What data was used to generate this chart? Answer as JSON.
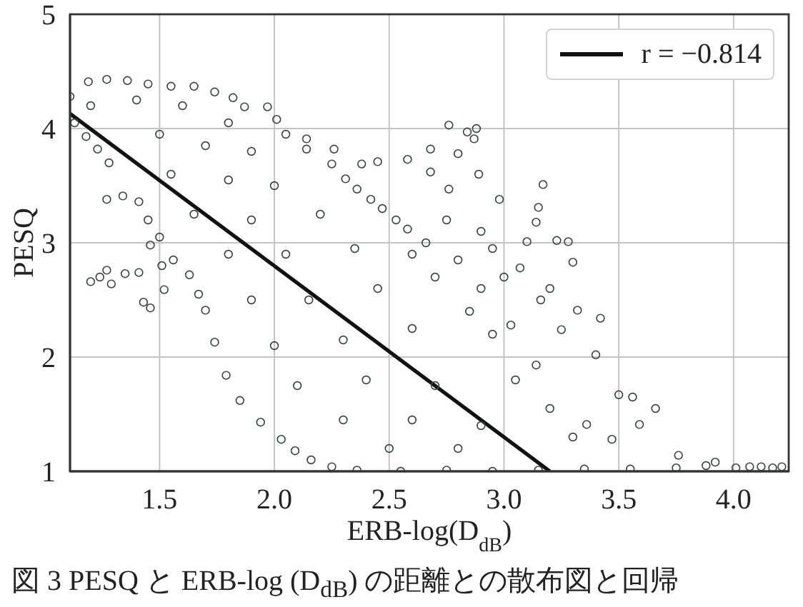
{
  "chart_data": {
    "type": "scatter",
    "xlabel": "ERB-log(D$_{dB}$)",
    "ylabel": "PESQ",
    "annotations": [
      "図 3 PESQ と ERB-log (D$_{dB}$) の距離との散布図と回帰"
    ],
    "xlim": [
      1.11,
      4.24
    ],
    "xticks": [
      1.5,
      {
        "value": 2,
        "label": "2.0"
      },
      2.5,
      {
        "value": 3,
        "label": "3.0"
      },
      3.5,
      {
        "value": 4,
        "label": "4.0"
      }
    ],
    "ylim": [
      1,
      5
    ],
    "yticks": [
      1,
      2,
      3,
      4,
      5
    ],
    "grid": true,
    "legend": "top right",
    "marker": "circle",
    "series": [
      {
        "color": "#3b4141",
        "x": [
          1.11,
          1.19,
          1.27,
          1.36,
          1.45,
          1.55,
          1.65,
          1.74,
          1.82,
          1.87,
          1.97,
          2.01,
          2.05,
          2.14,
          2.25,
          2.31,
          2.36,
          2.42,
          2.47,
          2.53,
          2.58,
          2.66,
          1.13,
          1.18,
          1.23,
          1.28,
          1.27,
          1.34,
          1.41,
          1.45,
          1.5,
          1.56,
          1.63,
          1.67,
          1.7,
          1.74,
          1.79,
          1.85,
          1.94,
          2.03,
          2.09,
          2.16,
          2.25,
          2.36,
          2.55,
          2.75,
          2.95,
          3.15,
          3.35,
          3.55,
          3.75,
          3.88,
          3.92,
          4.01,
          4.07,
          4.12,
          4.17,
          4.21,
          1.2,
          1.24,
          1.27,
          1.29,
          1.35,
          1.41,
          1.43,
          1.46,
          1.52,
          1.51,
          1.46,
          2.76,
          2.84,
          2.88,
          2.87,
          2.8,
          3.17,
          2.98,
          3.15,
          3.14,
          3.1,
          3.23,
          3.28,
          2.89,
          2.68,
          2.58,
          2.38,
          2.45,
          2.26,
          2.14,
          2.68,
          2.76,
          3.3,
          3.32,
          3.42,
          3.4,
          3.56,
          3.66,
          3.5,
          3.59,
          3.25,
          3.16,
          3.07,
          3.47,
          3.76,
          3.03,
          3.14,
          3.36,
          2.6,
          2.7,
          2.8,
          2.9,
          2.95,
          3.0,
          2.85,
          2.95,
          3.05,
          3.2,
          3.3,
          2.75,
          2.9,
          3.2,
          1.2,
          1.4,
          1.6,
          1.8,
          1.5,
          1.7,
          1.9,
          1.55,
          1.8,
          2.0,
          1.65,
          1.9,
          2.2,
          1.8,
          2.05,
          2.35,
          1.9,
          2.15,
          2.45,
          2.0,
          2.3,
          2.6,
          2.1,
          2.4,
          2.7,
          2.3,
          2.6,
          2.9,
          2.5,
          2.8
        ],
        "values": [
          4.28,
          4.41,
          4.43,
          4.42,
          4.39,
          4.37,
          4.37,
          4.32,
          4.27,
          4.19,
          4.19,
          4.08,
          3.95,
          3.82,
          3.69,
          3.56,
          3.47,
          3.38,
          3.3,
          3.2,
          3.12,
          3.0,
          4.05,
          3.93,
          3.82,
          3.7,
          3.38,
          3.41,
          3.36,
          3.2,
          3.05,
          2.85,
          2.72,
          2.55,
          2.41,
          2.13,
          1.84,
          1.62,
          1.43,
          1.28,
          1.18,
          1.1,
          1.04,
          1.01,
          1.0,
          1.01,
          1.0,
          1.01,
          1.02,
          1.02,
          1.03,
          1.05,
          1.08,
          1.03,
          1.04,
          1.04,
          1.03,
          1.04,
          2.66,
          2.7,
          2.76,
          2.64,
          2.73,
          2.74,
          2.48,
          2.43,
          2.59,
          2.8,
          2.98,
          4.03,
          3.97,
          4.0,
          3.91,
          3.78,
          3.51,
          3.38,
          3.31,
          3.18,
          3.01,
          3.02,
          3.01,
          3.6,
          3.62,
          3.73,
          3.69,
          3.71,
          3.82,
          3.91,
          3.82,
          3.47,
          2.83,
          2.41,
          2.34,
          2.02,
          1.65,
          1.55,
          1.67,
          1.41,
          2.24,
          2.5,
          2.78,
          1.28,
          1.14,
          2.28,
          1.93,
          1.41,
          2.9,
          2.7,
          2.85,
          2.6,
          2.95,
          2.7,
          2.4,
          2.2,
          1.8,
          1.55,
          1.3,
          3.2,
          3.1,
          2.6,
          4.2,
          4.25,
          4.2,
          4.05,
          3.95,
          3.85,
          3.8,
          3.6,
          3.55,
          3.5,
          3.25,
          3.2,
          3.25,
          2.9,
          2.9,
          2.95,
          2.5,
          2.5,
          2.6,
          2.1,
          2.15,
          2.25,
          1.75,
          1.8,
          1.75,
          1.45,
          1.45,
          1.4,
          1.2,
          1.2
        ]
      },
      {
        "type": "line",
        "name": "r = −0.814",
        "color": "#111111",
        "marker": "none",
        "x": [
          1.11,
          3.2
        ],
        "values": [
          4.13,
          1.0
        ]
      }
    ]
  }
}
